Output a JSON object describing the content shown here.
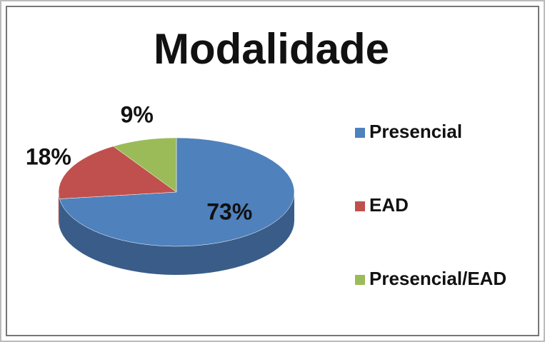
{
  "chart_data": {
    "type": "pie",
    "title": "Modalidade",
    "categories": [
      "Presencial",
      "EAD",
      "Presencial/EAD"
    ],
    "values": [
      73,
      18,
      9
    ],
    "value_labels": [
      "73%",
      "18%",
      "9%"
    ],
    "colors": [
      "#4f81bd",
      "#c0504d",
      "#9bbb59"
    ],
    "legend": "right"
  }
}
